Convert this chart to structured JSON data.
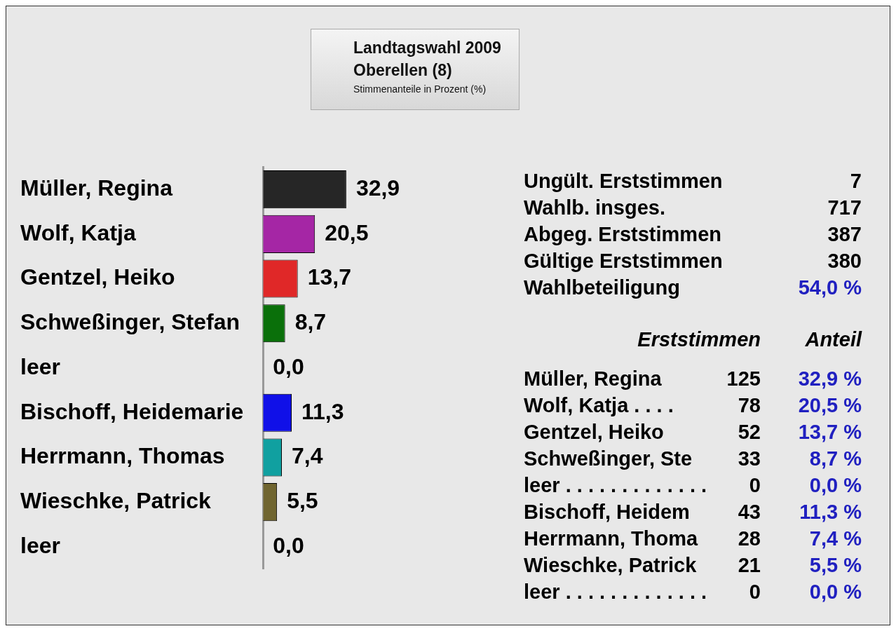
{
  "chart_data": [
    {
      "type": "bar",
      "orientation": "horizontal",
      "title": "Landtagswahl 2009",
      "subtitle": "Oberellen (8)",
      "annotations": [
        "Stimmenanteile in Prozent (%)"
      ],
      "categories": [
        "Müller, Regina",
        "Wolf, Katja",
        "Gentzel, Heiko",
        "Schweßinger, Stefan",
        "leer",
        "Bischoff, Heidemarie",
        "Herrmann, Thomas",
        "Wieschke, Patrick",
        "leer"
      ],
      "values": [
        32.9,
        20.5,
        13.7,
        8.7,
        0,
        11.3,
        7.4,
        5.5,
        0
      ],
      "value_labels": [
        "32,9",
        "20,5",
        "13,7",
        "8,7",
        "0,0",
        "11,3",
        "7,4",
        "5,5",
        "0,0"
      ],
      "colors": [
        "#262626",
        "#a526a5",
        "#e02828",
        "#0a700a",
        "#c04060",
        "#1010e8",
        "#10a0a0",
        "#706530",
        "#b4b4b4"
      ]
    },
    {
      "type": "other",
      "categories": [
        "Ungült. Erststimmen",
        "Wahlb. insges.",
        "Abgeg. Erststimmen",
        "Gültige Erststimmen",
        "Wahlbeteiligung"
      ],
      "values": [
        7,
        717,
        387,
        380,
        54.0
      ],
      "value_labels": [
        "7",
        "717",
        "387",
        "380",
        "54,0 %"
      ],
      "colors": [
        "#000000",
        "#000000",
        "#000000",
        "#000000",
        "#2020c0"
      ]
    },
    {
      "type": "other",
      "title": "Erststimmen",
      "categories": [
        "Müller, Regina",
        "Wolf, Katja . . . .",
        "Gentzel, Heiko",
        "Schweßinger, Ste",
        "leer . . . . . . . . . . . . .",
        "Bischoff, Heidem",
        "Herrmann, Thoma",
        "Wieschke, Patrick",
        "leer . . . . . . . . . . . . ."
      ],
      "values": [
        125,
        78,
        52,
        33,
        0,
        43,
        28,
        21,
        0
      ],
      "value_labels": [
        "125",
        "78",
        "52",
        "33",
        "0",
        "43",
        "28",
        "21",
        "0"
      ],
      "color": "#000000"
    },
    {
      "type": "other",
      "title": "Anteil",
      "value_labels": [
        "32,9 %",
        "20,5 %",
        "13,7 %",
        "8,7 %",
        "0,0 %",
        "11,3 %",
        "7,4 %",
        "5,5 %",
        "0,0 %"
      ],
      "color": "#2020c0"
    }
  ]
}
